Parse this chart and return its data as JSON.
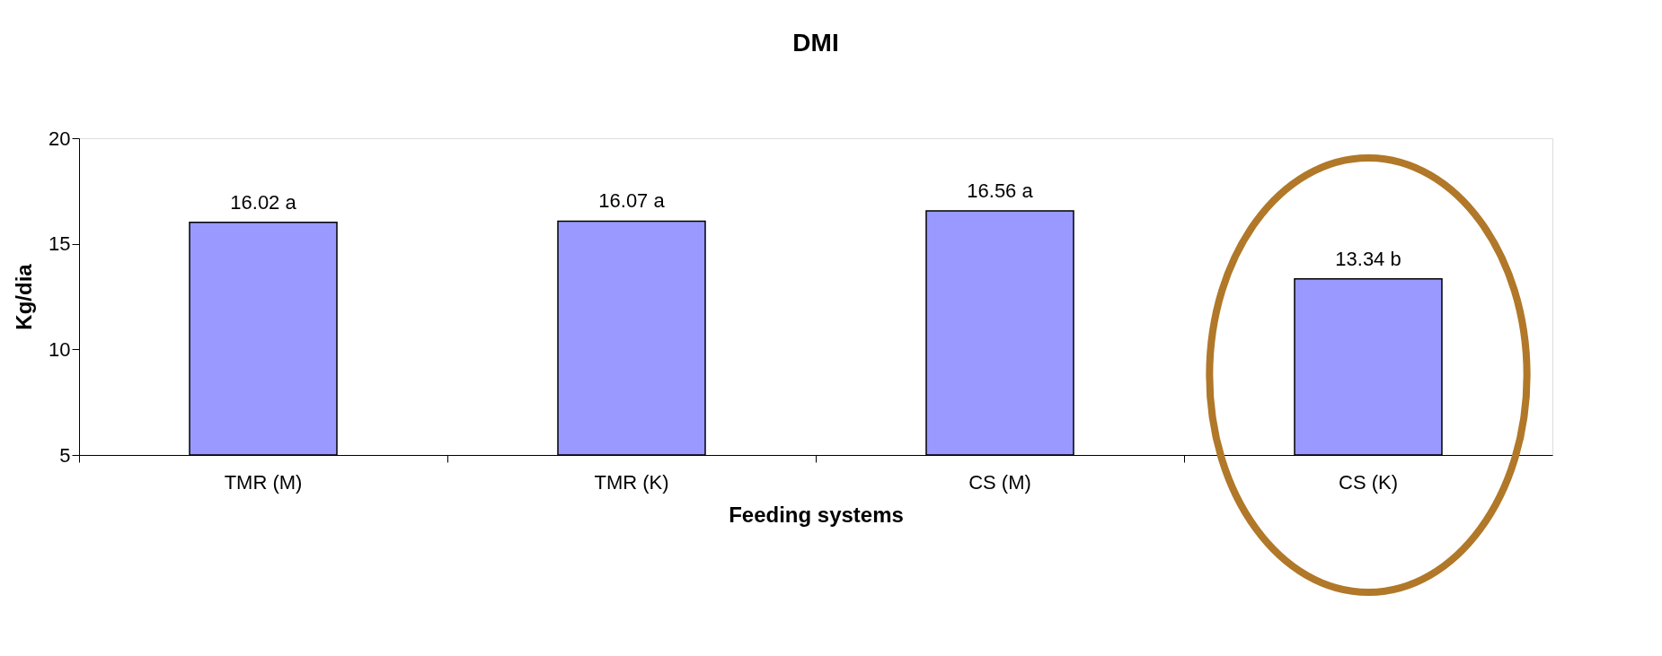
{
  "chart_data": {
    "type": "bar",
    "title": "DMI",
    "xlabel": "Feeding systems",
    "ylabel": "Kg/dia",
    "categories": [
      "TMR (M)",
      "TMR (K)",
      "CS (M)",
      "CS (K)"
    ],
    "values": [
      16.02,
      16.07,
      16.56,
      13.34
    ],
    "value_labels": [
      "16.02 a",
      "16.07 a",
      "16.56 a",
      "13.34 b"
    ],
    "color": "#9999ff",
    "ylim": [
      5,
      20
    ],
    "yticks": [
      5,
      10,
      15,
      20
    ],
    "grid": false
  }
}
